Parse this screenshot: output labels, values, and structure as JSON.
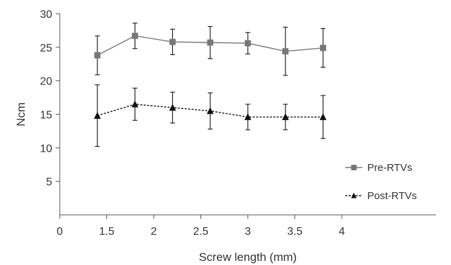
{
  "chart_data": {
    "type": "line",
    "title": "",
    "xlabel": "Screw length (mm)",
    "ylabel": "Ncm",
    "xlim": [
      0,
      4
    ],
    "ylim": [
      0,
      30
    ],
    "x_ticks": [
      {
        "value": 0,
        "label": "0"
      },
      {
        "value": 0.5,
        "label": "1.5"
      },
      {
        "value": 1.0,
        "label": "2"
      },
      {
        "value": 1.5,
        "label": "2.5"
      },
      {
        "value": 2.0,
        "label": "3"
      },
      {
        "value": 2.5,
        "label": "3.5"
      },
      {
        "value": 3.0,
        "label": "4"
      }
    ],
    "y_ticks": [
      {
        "value": 5,
        "label": "5"
      },
      {
        "value": 10,
        "label": "10"
      },
      {
        "value": 15,
        "label": "15"
      },
      {
        "value": 20,
        "label": "20"
      },
      {
        "value": 25,
        "label": "25"
      },
      {
        "value": 30,
        "label": "30"
      }
    ],
    "grid": false,
    "legend_position": "right",
    "x": [
      0.4,
      0.8,
      1.2,
      1.6,
      2.0,
      2.4,
      2.8
    ],
    "series": [
      {
        "name": "Pre-RTVs",
        "marker": "square",
        "line_style": "solid",
        "color": "#777777",
        "values": [
          23.8,
          26.7,
          25.8,
          25.7,
          25.6,
          24.4,
          24.9
        ],
        "error": [
          2.9,
          1.9,
          1.9,
          2.4,
          1.6,
          3.6,
          2.9
        ]
      },
      {
        "name": "Post-RTVs",
        "marker": "triangle",
        "line_style": "dashed",
        "color": "#111111",
        "values": [
          14.8,
          16.5,
          16.0,
          15.5,
          14.6,
          14.6,
          14.6
        ],
        "error": [
          4.6,
          2.4,
          2.3,
          2.7,
          1.9,
          1.9,
          3.2
        ]
      }
    ]
  }
}
